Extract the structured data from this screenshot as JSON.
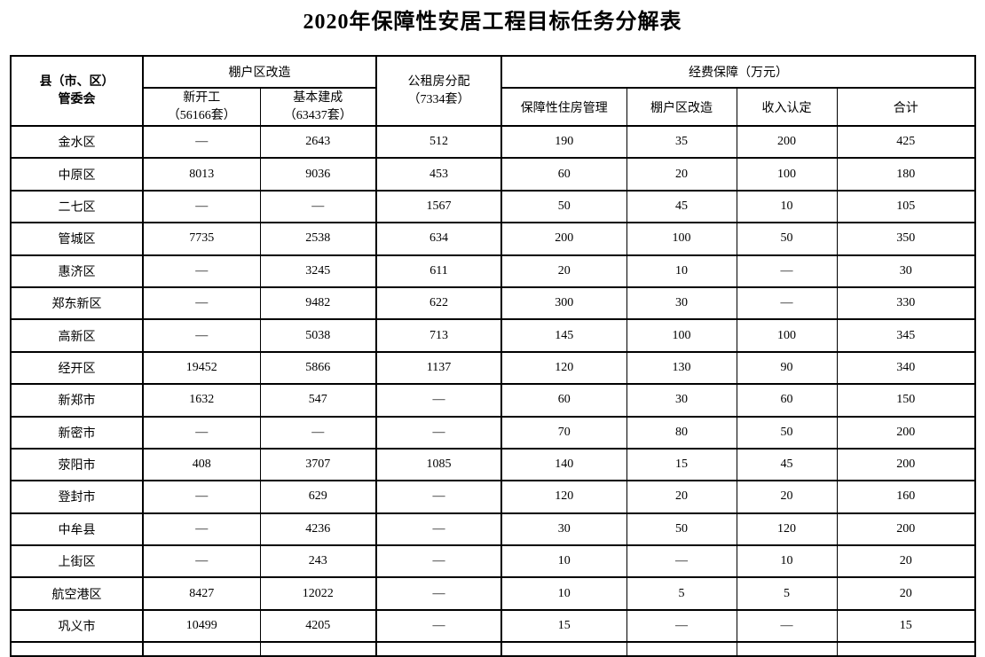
{
  "title": "2020年保障性安居工程目标任务分解表",
  "table": {
    "header": {
      "region_line1": "县（市、区）",
      "region_line2": "管委会",
      "shanty_group": "棚户区改造",
      "new_start_line1": "新开工",
      "new_start_line2": "（56166套）",
      "completed_line1": "基本建成",
      "completed_line2": "（63437套）",
      "public_rental_line1": "公租房分配",
      "public_rental_line2": "（7334套）",
      "funding_group": "经费保障（万元）",
      "housing_mgmt": "保障性住房管理",
      "shanty_fund": "棚户区改造",
      "income_check": "收入认定",
      "total": "合计"
    },
    "rows": [
      {
        "region": "金水区",
        "values": [
          "—",
          "2643",
          "512",
          "190",
          "35",
          "200",
          "425"
        ]
      },
      {
        "region": "中原区",
        "values": [
          "8013",
          "9036",
          "453",
          "60",
          "20",
          "100",
          "180"
        ]
      },
      {
        "region": "二七区",
        "values": [
          "—",
          "—",
          "1567",
          "50",
          "45",
          "10",
          "105"
        ]
      },
      {
        "region": "管城区",
        "values": [
          "7735",
          "2538",
          "634",
          "200",
          "100",
          "50",
          "350"
        ]
      },
      {
        "region": "惠济区",
        "values": [
          "—",
          "3245",
          "611",
          "20",
          "10",
          "—",
          "30"
        ]
      },
      {
        "region": "郑东新区",
        "values": [
          "—",
          "9482",
          "622",
          "300",
          "30",
          "—",
          "330"
        ]
      },
      {
        "region": "高新区",
        "values": [
          "—",
          "5038",
          "713",
          "145",
          "100",
          "100",
          "345"
        ]
      },
      {
        "region": "经开区",
        "values": [
          "19452",
          "5866",
          "1137",
          "120",
          "130",
          "90",
          "340"
        ]
      },
      {
        "region": "新郑市",
        "values": [
          "1632",
          "547",
          "—",
          "60",
          "30",
          "60",
          "150"
        ]
      },
      {
        "region": "新密市",
        "values": [
          "—",
          "—",
          "—",
          "70",
          "80",
          "50",
          "200"
        ]
      },
      {
        "region": "荥阳市",
        "values": [
          "408",
          "3707",
          "1085",
          "140",
          "15",
          "45",
          "200"
        ]
      },
      {
        "region": "登封市",
        "values": [
          "—",
          "629",
          "—",
          "120",
          "20",
          "20",
          "160"
        ]
      },
      {
        "region": "中牟县",
        "values": [
          "—",
          "4236",
          "—",
          "30",
          "50",
          "120",
          "200"
        ]
      },
      {
        "region": "上街区",
        "values": [
          "—",
          "243",
          "—",
          "10",
          "—",
          "10",
          "20"
        ]
      },
      {
        "region": "航空港区",
        "values": [
          "8427",
          "12022",
          "—",
          "10",
          "5",
          "5",
          "20"
        ]
      },
      {
        "region": "巩义市",
        "values": [
          "10499",
          "4205",
          "—",
          "15",
          "—",
          "—",
          "15"
        ]
      }
    ]
  }
}
